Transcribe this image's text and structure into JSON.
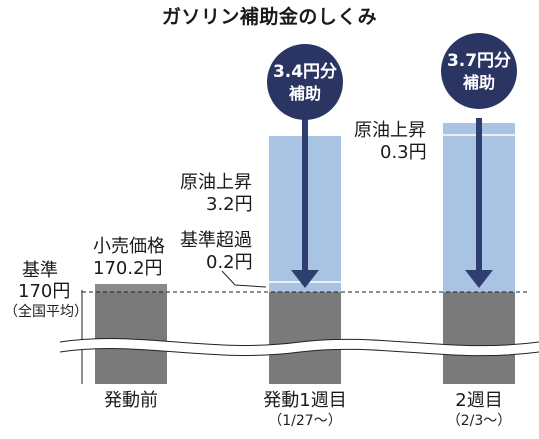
{
  "title": "ガソリン補助金のしくみ",
  "colors": {
    "gray_bar": "#7a7a7a",
    "price_band": "#8a8a8a",
    "subsidy_fill": "#a9c3e2",
    "arrow": "#2f3e70",
    "badge": "#2b3563",
    "baseline_dash": "#222222"
  },
  "baseline": {
    "label": "基準",
    "value": "170円",
    "note": "（全国平均）"
  },
  "retail_price": {
    "label": "小売価格",
    "value": "170.2円"
  },
  "bars": [
    {
      "name": "発動前",
      "period": "",
      "subsidy_share": 0
    },
    {
      "name": "発動1週目",
      "period": "（1/27～）",
      "badge_amount": "3.4円分",
      "badge_word": "補助",
      "crude_label": "原油上昇",
      "crude_value": "3.2円",
      "excess_label": "基準超過",
      "excess_value": "0.2円"
    },
    {
      "name": "2週目",
      "period": "（2/3～）",
      "badge_amount": "3.7円分",
      "badge_word": "補助",
      "crude_label": "原油上昇",
      "crude_value": "0.3円"
    }
  ]
}
